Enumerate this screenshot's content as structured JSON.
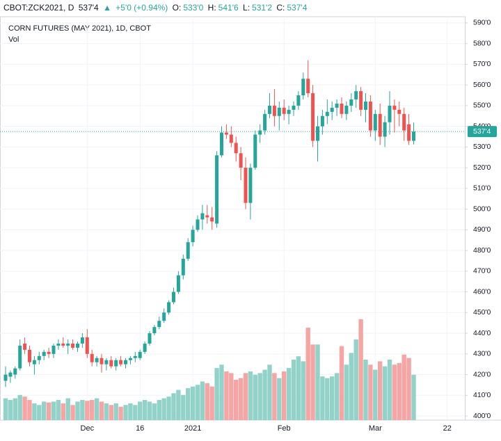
{
  "header": {
    "symbol": "CBOT:ZCK2021, D",
    "price": "537'4",
    "arrow": "▲",
    "change": "+5'0 (+0.94%)",
    "open_label": "O:",
    "open": "533'0",
    "high_label": "H:",
    "high": "541'6",
    "low_label": "L:",
    "low": "531'2",
    "close_label": "C:",
    "close": "537'4"
  },
  "chart_data": {
    "type": "candlestick",
    "title": "CORN FUTURES (MAY 2021), 1D, CBOT",
    "volume_title": "Vol",
    "up_color": "#26a69a",
    "down_color": "#ef5350",
    "up_volume_color": "#93d2c9",
    "down_volume_color": "#f5a6a4",
    "ylim": [
      398,
      593
    ],
    "yticks": [
      {
        "value": 400,
        "label": "400'0"
      },
      {
        "value": 410,
        "label": "410'0"
      },
      {
        "value": 420,
        "label": "420'0"
      },
      {
        "value": 430,
        "label": "430'0"
      },
      {
        "value": 440,
        "label": "440'0"
      },
      {
        "value": 450,
        "label": "450'0"
      },
      {
        "value": 460,
        "label": "460'0"
      },
      {
        "value": 470,
        "label": "470'0"
      },
      {
        "value": 480,
        "label": "480'0"
      },
      {
        "value": 490,
        "label": "490'0"
      },
      {
        "value": 500,
        "label": "500'0"
      },
      {
        "value": 510,
        "label": "510'0"
      },
      {
        "value": 520,
        "label": "520'0"
      },
      {
        "value": 530,
        "label": "530'0"
      },
      {
        "value": 540,
        "label": "540'0"
      },
      {
        "value": 550,
        "label": "550'0"
      },
      {
        "value": 560,
        "label": "560'0"
      },
      {
        "value": 570,
        "label": "570'0"
      },
      {
        "value": 580,
        "label": "580'0"
      },
      {
        "value": 590,
        "label": "590'0"
      }
    ],
    "xticks": [
      {
        "value": 17,
        "label": "Dec"
      },
      {
        "value": 28,
        "label": "16"
      },
      {
        "value": 39,
        "label": "2021"
      },
      {
        "value": 58,
        "label": "Feb"
      },
      {
        "value": 77,
        "label": "Mar"
      },
      {
        "value": 92,
        "label": "22"
      }
    ],
    "last_price": {
      "value": 537.5,
      "label": "537'4"
    },
    "ohlc": [
      [
        417,
        424,
        414,
        420
      ],
      [
        419,
        422,
        416,
        421
      ],
      [
        420,
        424,
        418,
        423
      ],
      [
        423,
        437,
        422,
        434
      ],
      [
        435,
        438,
        430,
        432
      ],
      [
        432,
        434,
        424,
        426
      ],
      [
        425,
        429,
        420,
        427
      ],
      [
        427,
        431,
        425,
        429
      ],
      [
        429,
        432,
        427,
        431
      ],
      [
        431,
        433,
        428,
        430
      ],
      [
        430,
        435,
        428,
        434
      ],
      [
        434,
        437,
        432,
        435
      ],
      [
        435,
        438,
        433,
        434
      ],
      [
        434,
        437,
        430,
        435
      ],
      [
        435,
        437,
        432,
        433
      ],
      [
        433,
        436,
        431,
        435
      ],
      [
        435,
        440,
        433,
        438
      ],
      [
        438,
        442,
        428,
        430
      ],
      [
        430,
        432,
        424,
        426
      ],
      [
        426,
        429,
        424,
        428
      ],
      [
        428,
        430,
        421,
        425
      ],
      [
        425,
        428,
        422,
        427
      ],
      [
        427,
        429,
        423,
        424
      ],
      [
        424,
        428,
        422,
        427
      ],
      [
        427,
        429,
        424,
        425
      ],
      [
        425,
        428,
        423,
        427
      ],
      [
        427,
        429,
        425,
        428
      ],
      [
        428,
        431,
        426,
        429
      ],
      [
        428,
        432,
        427,
        431
      ],
      [
        431,
        436,
        430,
        435
      ],
      [
        435,
        441,
        434,
        440
      ],
      [
        440,
        444,
        439,
        443
      ],
      [
        443,
        448,
        442,
        446
      ],
      [
        446,
        452,
        445,
        450
      ],
      [
        450,
        456,
        449,
        455
      ],
      [
        455,
        462,
        454,
        460
      ],
      [
        460,
        470,
        459,
        468
      ],
      [
        468,
        478,
        466,
        476
      ],
      [
        476,
        486,
        475,
        484
      ],
      [
        484,
        492,
        482,
        490
      ],
      [
        490,
        497,
        489,
        495
      ],
      [
        495,
        502,
        490,
        498
      ],
      [
        497,
        502,
        493,
        496
      ],
      [
        496,
        501,
        490,
        494
      ],
      [
        493,
        528,
        491,
        526
      ],
      [
        526,
        540,
        525,
        537
      ],
      [
        537,
        541,
        534,
        536
      ],
      [
        536,
        540,
        530,
        532
      ],
      [
        532,
        535,
        523,
        527
      ],
      [
        527,
        530,
        514,
        520
      ],
      [
        520,
        525,
        500,
        503
      ],
      [
        503,
        522,
        495,
        520
      ],
      [
        520,
        538,
        519,
        536
      ],
      [
        536,
        541,
        532,
        538
      ],
      [
        538,
        548,
        536,
        546
      ],
      [
        546,
        556,
        544,
        550
      ],
      [
        550,
        558,
        540,
        545
      ],
      [
        545,
        552,
        538,
        549
      ],
      [
        549,
        553,
        543,
        546
      ],
      [
        546,
        550,
        541,
        548
      ],
      [
        548,
        552,
        545,
        550
      ],
      [
        550,
        557,
        548,
        555
      ],
      [
        555,
        566,
        553,
        563
      ],
      [
        563,
        572,
        554,
        556
      ],
      [
        556,
        560,
        530,
        533
      ],
      [
        533,
        545,
        523,
        540
      ],
      [
        540,
        548,
        536,
        545
      ],
      [
        545,
        553,
        541,
        547
      ],
      [
        547,
        552,
        543,
        549
      ],
      [
        549,
        553,
        545,
        551
      ],
      [
        551,
        554,
        544,
        546
      ],
      [
        546,
        552,
        543,
        550
      ],
      [
        550,
        556,
        547,
        553
      ],
      [
        553,
        560,
        549,
        557
      ],
      [
        557,
        559,
        545,
        548
      ],
      [
        548,
        556,
        542,
        552
      ],
      [
        552,
        555,
        535,
        538
      ],
      [
        538,
        548,
        533,
        546
      ],
      [
        546,
        551,
        531,
        535
      ],
      [
        535,
        545,
        530,
        542
      ],
      [
        542,
        557,
        536,
        550
      ],
      [
        550,
        553,
        537,
        548
      ],
      [
        548,
        552,
        540,
        546
      ],
      [
        546,
        549,
        533,
        538
      ],
      [
        541,
        546,
        531,
        533
      ],
      [
        533,
        541.75,
        531.25,
        537.5
      ]
    ],
    "volume": [
      26,
      24,
      26,
      30,
      28,
      24,
      20,
      18,
      22,
      21,
      22,
      24,
      20,
      26,
      18,
      22,
      24,
      23,
      24,
      26,
      22,
      20,
      18,
      20,
      16,
      18,
      20,
      18,
      22,
      24,
      22,
      20,
      24,
      26,
      28,
      32,
      36,
      30,
      38,
      40,
      42,
      46,
      44,
      40,
      62,
      66,
      58,
      56,
      48,
      50,
      56,
      58,
      54,
      56,
      60,
      66,
      56,
      50,
      58,
      62,
      72,
      76,
      70,
      110,
      90,
      90,
      52,
      50,
      52,
      56,
      88,
      66,
      80,
      96,
      120,
      72,
      66,
      60,
      70,
      64,
      72,
      66,
      68,
      78,
      74,
      54
    ]
  }
}
